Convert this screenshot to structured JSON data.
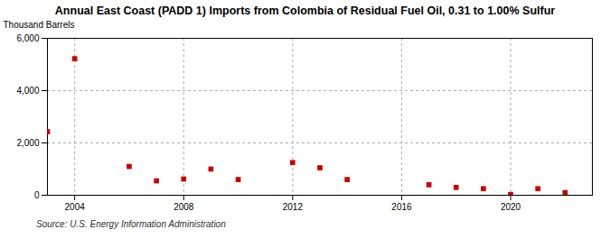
{
  "chart_data": {
    "type": "scatter",
    "title": "Annual East Coast (PADD 1) Imports from Colombia of Residual Fuel Oil, 0.31 to 1.00% Sulfur",
    "ylabel": "Thousand Barrels",
    "annotation": "Source: U.S. Energy Information Administration",
    "x": [
      2003,
      2004,
      2006,
      2007,
      2008,
      2009,
      2010,
      2012,
      2013,
      2014,
      2017,
      2018,
      2019,
      2020,
      2021,
      2022
    ],
    "values": [
      2430,
      5220,
      1100,
      550,
      620,
      1000,
      600,
      1250,
      1050,
      600,
      400,
      300,
      250,
      30,
      250,
      100
    ],
    "color": "#cc0000",
    "marker": "square",
    "xlim": [
      2003.0,
      2023.0
    ],
    "ylim": [
      0,
      6000
    ],
    "xticks": [
      2004,
      2008,
      2012,
      2016,
      2020
    ],
    "yticks": [
      0,
      {
        "value": 2000,
        "label": "2,000"
      },
      {
        "value": 4000,
        "label": "4,000"
      },
      {
        "value": 6000,
        "label": "6,000"
      }
    ],
    "grid": true
  }
}
